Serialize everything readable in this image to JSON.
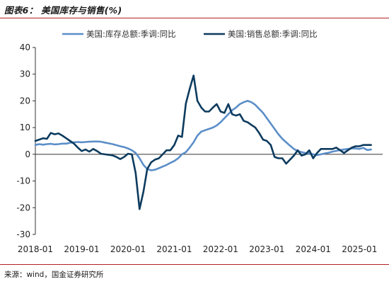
{
  "figure_title": "图表6： 美国库存与销售(%)",
  "source_note": "来源：wind，国金证券研究所",
  "chart_data": {
    "type": "line",
    "title": "",
    "xlabel": "",
    "ylabel": "",
    "ylim": [
      -30,
      40
    ],
    "yticks": [
      -30,
      -20,
      -10,
      0,
      10,
      20,
      30,
      40
    ],
    "xlim": [
      "2018-01",
      "2025-04"
    ],
    "xticks": [
      "2018-01",
      "2019-01",
      "2020-01",
      "2021-01",
      "2022-01",
      "2023-01",
      "2024-01",
      "2025-01"
    ],
    "grid": false,
    "legend_position": "top",
    "series": [
      {
        "name": "美国:库存总额:季调:同比",
        "color": "#5b8ec8",
        "points": [
          [
            "2018-01",
            3.5
          ],
          [
            "2018-02",
            3.8
          ],
          [
            "2018-03",
            3.6
          ],
          [
            "2018-04",
            3.8
          ],
          [
            "2018-05",
            3.9
          ],
          [
            "2018-06",
            3.7
          ],
          [
            "2018-07",
            3.8
          ],
          [
            "2018-08",
            4.0
          ],
          [
            "2018-09",
            4.0
          ],
          [
            "2018-10",
            4.3
          ],
          [
            "2018-11",
            4.5
          ],
          [
            "2018-12",
            4.6
          ],
          [
            "2019-01",
            4.5
          ],
          [
            "2019-02",
            4.6
          ],
          [
            "2019-03",
            4.7
          ],
          [
            "2019-04",
            4.8
          ],
          [
            "2019-05",
            4.8
          ],
          [
            "2019-06",
            4.7
          ],
          [
            "2019-07",
            4.4
          ],
          [
            "2019-08",
            4.1
          ],
          [
            "2019-09",
            3.8
          ],
          [
            "2019-10",
            3.4
          ],
          [
            "2019-11",
            3.0
          ],
          [
            "2019-12",
            2.7
          ],
          [
            "2020-01",
            2.2
          ],
          [
            "2020-02",
            1.5
          ],
          [
            "2020-03",
            0.5
          ],
          [
            "2020-04",
            -1.5
          ],
          [
            "2020-05",
            -4.0
          ],
          [
            "2020-06",
            -5.5
          ],
          [
            "2020-07",
            -6.0
          ],
          [
            "2020-08",
            -5.8
          ],
          [
            "2020-09",
            -5.2
          ],
          [
            "2020-10",
            -4.6
          ],
          [
            "2020-11",
            -4.0
          ],
          [
            "2020-12",
            -3.2
          ],
          [
            "2021-01",
            -2.5
          ],
          [
            "2021-02",
            -1.5
          ],
          [
            "2021-03",
            0.0
          ],
          [
            "2021-04",
            0.8
          ],
          [
            "2021-05",
            2.5
          ],
          [
            "2021-06",
            4.5
          ],
          [
            "2021-07",
            7.0
          ],
          [
            "2021-08",
            8.5
          ],
          [
            "2021-09",
            9.0
          ],
          [
            "2021-10",
            9.5
          ],
          [
            "2021-11",
            10.0
          ],
          [
            "2021-12",
            10.8
          ],
          [
            "2022-01",
            12.0
          ],
          [
            "2022-02",
            13.5
          ],
          [
            "2022-03",
            15.0
          ],
          [
            "2022-04",
            16.5
          ],
          [
            "2022-05",
            17.5
          ],
          [
            "2022-06",
            18.8
          ],
          [
            "2022-07",
            19.5
          ],
          [
            "2022-08",
            20.0
          ],
          [
            "2022-09",
            19.5
          ],
          [
            "2022-10",
            18.5
          ],
          [
            "2022-11",
            17.0
          ],
          [
            "2022-12",
            15.5
          ],
          [
            "2023-01",
            13.5
          ],
          [
            "2023-02",
            11.5
          ],
          [
            "2023-03",
            9.5
          ],
          [
            "2023-04",
            7.5
          ],
          [
            "2023-05",
            5.8
          ],
          [
            "2023-06",
            4.5
          ],
          [
            "2023-07",
            3.2
          ],
          [
            "2023-08",
            2.0
          ],
          [
            "2023-09",
            1.2
          ],
          [
            "2023-10",
            0.8
          ],
          [
            "2023-11",
            0.5
          ],
          [
            "2023-12",
            0.3
          ],
          [
            "2024-01",
            0.0
          ],
          [
            "2024-02",
            -0.3
          ],
          [
            "2024-03",
            0.0
          ],
          [
            "2024-04",
            0.3
          ],
          [
            "2024-05",
            0.6
          ],
          [
            "2024-06",
            1.0
          ],
          [
            "2024-07",
            1.3
          ],
          [
            "2024-08",
            1.6
          ],
          [
            "2024-09",
            1.8
          ],
          [
            "2024-10",
            2.0
          ],
          [
            "2024-11",
            2.2
          ],
          [
            "2024-12",
            2.2
          ],
          [
            "2025-01",
            2.0
          ],
          [
            "2025-02",
            2.4
          ],
          [
            "2025-03",
            1.6
          ],
          [
            "2025-04",
            1.8
          ]
        ]
      },
      {
        "name": "美国:销售总额:季调:同比",
        "color": "#0d3b5e",
        "points": [
          [
            "2018-01",
            5.0
          ],
          [
            "2018-02",
            5.5
          ],
          [
            "2018-03",
            6.0
          ],
          [
            "2018-04",
            5.8
          ],
          [
            "2018-05",
            8.0
          ],
          [
            "2018-06",
            7.5
          ],
          [
            "2018-07",
            7.8
          ],
          [
            "2018-08",
            7.0
          ],
          [
            "2018-09",
            6.0
          ],
          [
            "2018-10",
            5.0
          ],
          [
            "2018-11",
            4.0
          ],
          [
            "2018-12",
            2.5
          ],
          [
            "2019-01",
            1.2
          ],
          [
            "2019-02",
            1.8
          ],
          [
            "2019-03",
            1.0
          ],
          [
            "2019-04",
            2.0
          ],
          [
            "2019-05",
            1.2
          ],
          [
            "2019-06",
            0.2
          ],
          [
            "2019-07",
            0.0
          ],
          [
            "2019-08",
            -0.2
          ],
          [
            "2019-09",
            -0.4
          ],
          [
            "2019-10",
            -1.0
          ],
          [
            "2019-11",
            -1.8
          ],
          [
            "2019-12",
            -1.0
          ],
          [
            "2020-01",
            0.2
          ],
          [
            "2020-02",
            0.0
          ],
          [
            "2020-03",
            -7.0
          ],
          [
            "2020-04",
            -20.5
          ],
          [
            "2020-05",
            -14.0
          ],
          [
            "2020-06",
            -5.5
          ],
          [
            "2020-07",
            -3.0
          ],
          [
            "2020-08",
            -2.0
          ],
          [
            "2020-09",
            -1.5
          ],
          [
            "2020-10",
            0.0
          ],
          [
            "2020-11",
            1.5
          ],
          [
            "2020-12",
            1.5
          ],
          [
            "2021-01",
            3.5
          ],
          [
            "2021-02",
            7.0
          ],
          [
            "2021-03",
            6.5
          ],
          [
            "2021-04",
            19.0
          ],
          [
            "2021-05",
            24.5
          ],
          [
            "2021-06",
            29.5
          ],
          [
            "2021-07",
            20.0
          ],
          [
            "2021-08",
            17.5
          ],
          [
            "2021-09",
            16.0
          ],
          [
            "2021-10",
            16.0
          ],
          [
            "2021-11",
            17.5
          ],
          [
            "2021-12",
            18.8
          ],
          [
            "2022-01",
            16.0
          ],
          [
            "2022-02",
            15.5
          ],
          [
            "2022-03",
            18.8
          ],
          [
            "2022-04",
            15.0
          ],
          [
            "2022-05",
            14.5
          ],
          [
            "2022-06",
            15.0
          ],
          [
            "2022-07",
            12.5
          ],
          [
            "2022-08",
            12.0
          ],
          [
            "2022-09",
            11.0
          ],
          [
            "2022-10",
            10.0
          ],
          [
            "2022-11",
            8.0
          ],
          [
            "2022-12",
            5.5
          ],
          [
            "2023-01",
            5.0
          ],
          [
            "2023-02",
            3.5
          ],
          [
            "2023-03",
            -1.0
          ],
          [
            "2023-04",
            -1.5
          ],
          [
            "2023-05",
            -1.5
          ],
          [
            "2023-06",
            -3.5
          ],
          [
            "2023-07",
            -2.0
          ],
          [
            "2023-08",
            -0.5
          ],
          [
            "2023-09",
            1.5
          ],
          [
            "2023-10",
            -0.5
          ],
          [
            "2023-11",
            0.0
          ],
          [
            "2023-12",
            1.5
          ],
          [
            "2024-01",
            -1.5
          ],
          [
            "2024-02",
            0.5
          ],
          [
            "2024-03",
            2.0
          ],
          [
            "2024-04",
            2.0
          ],
          [
            "2024-05",
            2.0
          ],
          [
            "2024-06",
            2.0
          ],
          [
            "2024-07",
            2.5
          ],
          [
            "2024-08",
            1.5
          ],
          [
            "2024-09",
            0.5
          ],
          [
            "2024-10",
            1.5
          ],
          [
            "2024-11",
            2.5
          ],
          [
            "2024-12",
            3.0
          ],
          [
            "2025-01",
            3.0
          ],
          [
            "2025-02",
            3.5
          ],
          [
            "2025-03",
            3.5
          ],
          [
            "2025-04",
            3.5
          ]
        ]
      }
    ]
  }
}
